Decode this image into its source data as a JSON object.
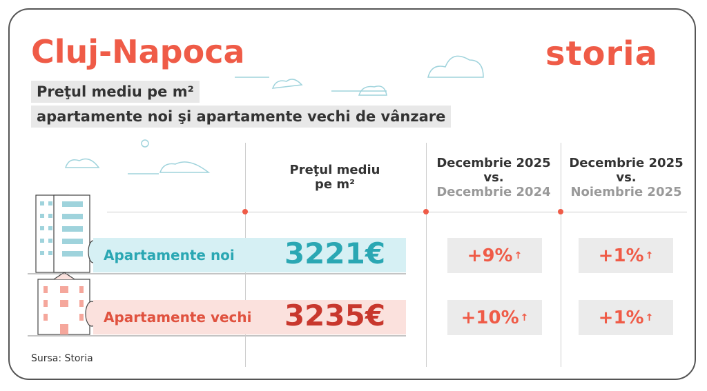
{
  "header": {
    "title": "Cluj-Napoca",
    "logo": "storia",
    "subtitle_lines": [
      "Preţul mediu pe m²",
      "apartamente noi şi apartamente vechi de vânzare"
    ]
  },
  "table": {
    "columns": [
      {
        "lines": [
          "Preţul mediu",
          "pe m²"
        ]
      },
      {
        "lines": [
          "Decembrie 2025",
          "vs.",
          "Decembrie 2024"
        ]
      },
      {
        "lines": [
          "Decembrie 2025",
          "vs.",
          "Noiembrie 2025"
        ]
      }
    ],
    "rows": [
      {
        "label": "Apartamente noi",
        "price": "3221€",
        "yoy": "+9%",
        "mom": "+1%"
      },
      {
        "label": "Apartamente vechi",
        "price": "3235€",
        "yoy": "+10%",
        "mom": "+1%"
      }
    ]
  },
  "source": "Sursa: Storia"
}
